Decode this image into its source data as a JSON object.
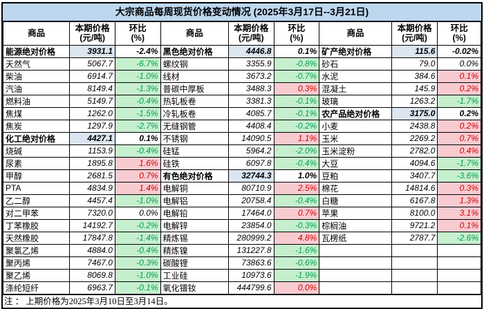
{
  "title": "大宗商品每周现货价格变动情况 (2025年3月17日--3月21日)",
  "note": "注 ： 上期价格为2025年3月10日至3月14日。",
  "header": {
    "product": "商品",
    "price_line1": "本期价格",
    "price_line2": "(元/吨)",
    "pct_line1": "环比",
    "pct_line2": "(%)"
  },
  "colors": {
    "title_bg": "#BDD7EE",
    "section_price_bg": "#DCE6F1",
    "increase_bg": "#F8CBD1",
    "increase_text": "#D30000",
    "decrease_bg": "#C6EFCE",
    "decrease_text": "#00A050",
    "border": "#000000"
  },
  "groups": [
    {
      "rows": [
        {
          "name": "能源绝对价格",
          "price": "3931.1",
          "pct": "-2.4%",
          "type": "section"
        },
        {
          "name": "天然气",
          "price": "5067.7",
          "pct": "-6.7%",
          "trend": "down"
        },
        {
          "name": "柴油",
          "price": "6914.7",
          "pct": "-1.0%",
          "trend": "down"
        },
        {
          "name": "汽油",
          "price": "8149.4",
          "pct": "-1.3%",
          "trend": "down"
        },
        {
          "name": "燃料油",
          "price": "5149.7",
          "pct": "-0.4%",
          "trend": "down"
        },
        {
          "name": "焦煤",
          "price": "1262.0",
          "pct": "-1.5%",
          "trend": "down"
        },
        {
          "name": "焦炭",
          "price": "1297.9",
          "pct": "-2.7%",
          "trend": "down"
        },
        {
          "name": "化工绝对价格",
          "price": "4427.1",
          "pct": "0.1%",
          "type": "section"
        },
        {
          "name": "烧碱",
          "price": "1153.9",
          "pct": "-0.4%",
          "trend": "down"
        },
        {
          "name": "尿素",
          "price": "1895.8",
          "pct": "1.6%",
          "trend": "up"
        },
        {
          "name": "甲醇",
          "price": "2681.5",
          "pct": "0.7%",
          "trend": "up"
        },
        {
          "name": "PTA",
          "price": "4834.9",
          "pct": "1.4%",
          "trend": "up"
        },
        {
          "name": "乙二醇",
          "price": "4457.4",
          "pct": "-1.0%",
          "trend": "down"
        },
        {
          "name": "对二甲苯",
          "price": "7320.0",
          "pct": "0.0%",
          "trend": "flat"
        },
        {
          "name": "丁苯橡胶",
          "price": "14192.7",
          "pct": "-0.2%",
          "trend": "down"
        },
        {
          "name": "天然橡胶",
          "price": "17847.8",
          "pct": "-1.4%",
          "trend": "down"
        },
        {
          "name": "聚氯乙烯",
          "price": "4884.0",
          "pct": "-0.4%",
          "trend": "down"
        },
        {
          "name": "聚丙烯",
          "price": "7467.0",
          "pct": "-0.3%",
          "trend": "down"
        },
        {
          "name": "聚乙烯",
          "price": "8069.8",
          "pct": "-1.0%",
          "trend": "down"
        },
        {
          "name": "涤纶短纤",
          "price": "6963.7",
          "pct": "-0.1%",
          "trend": "down"
        }
      ]
    },
    {
      "rows": [
        {
          "name": "黑色绝对价格",
          "price": "4446.8",
          "pct": "0.1%",
          "type": "section"
        },
        {
          "name": "螺纹钢",
          "price": "3355.9",
          "pct": "-0.8%",
          "trend": "down"
        },
        {
          "name": "线材",
          "price": "3673.2",
          "pct": "-0.7%",
          "trend": "down"
        },
        {
          "name": "普碳中厚板",
          "price": "3488.3",
          "pct": "0.3%",
          "trend": "up"
        },
        {
          "name": "热轧板卷",
          "price": "3381.3",
          "pct": "-0.1%",
          "trend": "down"
        },
        {
          "name": "冷轧板卷",
          "price": "4085.7",
          "pct": "-0.1%",
          "trend": "down"
        },
        {
          "name": "无缝钢管",
          "price": "4408.4",
          "pct": "-0.2%",
          "trend": "down"
        },
        {
          "name": "不锈钢",
          "price": "14090.5",
          "pct": "1.1%",
          "trend": "up"
        },
        {
          "name": "硅锰",
          "price": "5964.2",
          "pct": "-2.0%",
          "trend": "down"
        },
        {
          "name": "硅铁",
          "price": "6097.8",
          "pct": "-0.4%",
          "trend": "down"
        },
        {
          "name": "有色绝对价格",
          "price": "32744.3",
          "pct": "1.0%",
          "type": "section"
        },
        {
          "name": "电解铜",
          "price": "80710.9",
          "pct": "2.5%",
          "trend": "up"
        },
        {
          "name": "电解铝",
          "price": "20758.4",
          "pct": "-0.4%",
          "trend": "down"
        },
        {
          "name": "电解铅",
          "price": "17464.0",
          "pct": "0.7%",
          "trend": "up"
        },
        {
          "name": "电解锌",
          "price": "23854.0",
          "pct": "-0.3%",
          "trend": "down"
        },
        {
          "name": "精炼锡",
          "price": "280999.2",
          "pct": "4.8%",
          "trend": "up"
        },
        {
          "name": "精炼镍",
          "price": "131227.8",
          "pct": "-1.6%",
          "trend": "down"
        },
        {
          "name": "碳酸锂",
          "price": "73863.6",
          "pct": "-0.6%",
          "trend": "down"
        },
        {
          "name": "工业硅",
          "price": "10973.6",
          "pct": "-1.9%",
          "trend": "down"
        },
        {
          "name": "氧化镨钕",
          "price": "444799.6",
          "pct": "0.0%",
          "trend": "up"
        }
      ]
    },
    {
      "rows": [
        {
          "name": "矿产绝对价格",
          "price": "115.6",
          "pct": "-0.02%",
          "type": "section"
        },
        {
          "name": "砂石",
          "price": "79.0",
          "pct": "0.0%",
          "trend": "flat"
        },
        {
          "name": "水泥",
          "price": "384.6",
          "pct": "0.1%",
          "trend": "up"
        },
        {
          "name": "混凝土",
          "price": "145.9",
          "pct": "0.2%",
          "trend": "up"
        },
        {
          "name": "玻璃",
          "price": "1263.2",
          "pct": "-1.7%",
          "trend": "down"
        },
        {
          "name": "农产品绝对价格",
          "price": "3175.0",
          "pct": "0.2%",
          "type": "section"
        },
        {
          "name": "小麦",
          "price": "2438.8",
          "pct": "0.2%",
          "trend": "up"
        },
        {
          "name": "玉米",
          "price": "2269.2",
          "pct": "0.7%",
          "trend": "up"
        },
        {
          "name": "玉米淀粉",
          "price": "2782.0",
          "pct": "0.4%",
          "trend": "up"
        },
        {
          "name": "大豆",
          "price": "4094.6",
          "pct": "-1.7%",
          "trend": "down"
        },
        {
          "name": "豆粕",
          "price": "3407.7",
          "pct": "-3.6%",
          "trend": "down"
        },
        {
          "name": "棉花",
          "price": "14814.6",
          "pct": "0.3%",
          "trend": "up"
        },
        {
          "name": "白糖",
          "price": "6167.8",
          "pct": "1.3%",
          "trend": "up"
        },
        {
          "name": "苹果",
          "price": "8100.0",
          "pct": "3.1%",
          "trend": "up"
        },
        {
          "name": "棕榈油",
          "price": "9721.2",
          "pct": "0.1%",
          "trend": "up"
        },
        {
          "name": "瓦楞纸",
          "price": "2787.7",
          "pct": "-2.6%",
          "trend": "down"
        },
        {
          "name": "",
          "price": "",
          "pct": "",
          "trend": "empty"
        },
        {
          "name": "",
          "price": "",
          "pct": "",
          "trend": "empty"
        },
        {
          "name": "",
          "price": "",
          "pct": "",
          "trend": "empty"
        },
        {
          "name": "",
          "price": "",
          "pct": "",
          "trend": "empty"
        }
      ]
    }
  ]
}
